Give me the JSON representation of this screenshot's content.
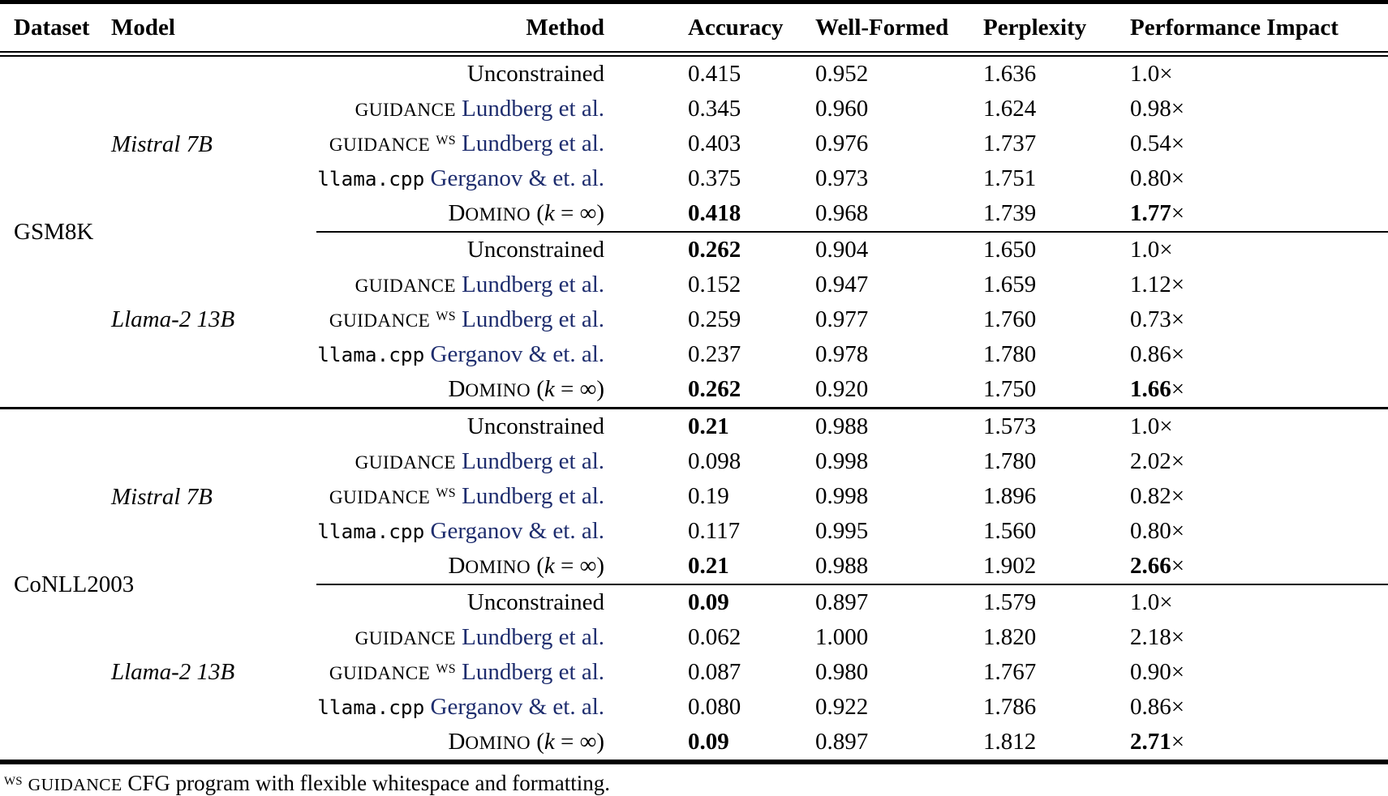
{
  "colors": {
    "citation": "#1e2d6e"
  },
  "impact_suffix": "×",
  "table": {
    "columns": [
      "Dataset",
      "Model",
      "Method",
      "Accuracy",
      "Well-Formed",
      "Perplexity",
      "Performance Impact"
    ],
    "sections": [
      {
        "dataset": "GSM8K",
        "groups": [
          {
            "model": "Mistral 7B",
            "rows": [
              {
                "method_parts": [
                  {
                    "t": "Unconstrained",
                    "s": "plain"
                  }
                ],
                "accuracy": "0.415",
                "accuracy_bold": false,
                "well_formed": "0.952",
                "perplexity": "1.636",
                "impact": "1.0",
                "impact_bold": false
              },
              {
                "method_parts": [
                  {
                    "t": "guidance",
                    "s": "sc"
                  },
                  {
                    "t": " ",
                    "s": "plain"
                  },
                  {
                    "t": "Lundberg et al.",
                    "s": "cite"
                  }
                ],
                "accuracy": "0.345",
                "accuracy_bold": false,
                "well_formed": "0.960",
                "perplexity": "1.624",
                "impact": "0.98",
                "impact_bold": false
              },
              {
                "method_parts": [
                  {
                    "t": "guidance",
                    "s": "sc"
                  },
                  {
                    "t": " ",
                    "s": "plain"
                  },
                  {
                    "t": "WS",
                    "s": "sup"
                  },
                  {
                    "t": " ",
                    "s": "plain"
                  },
                  {
                    "t": "Lundberg et al.",
                    "s": "cite"
                  }
                ],
                "accuracy": "0.403",
                "accuracy_bold": false,
                "well_formed": "0.976",
                "perplexity": "1.737",
                "impact": "0.54",
                "impact_bold": false
              },
              {
                "method_parts": [
                  {
                    "t": "llama.cpp",
                    "s": "mono"
                  },
                  {
                    "t": " ",
                    "s": "plain"
                  },
                  {
                    "t": "Gerganov & et. al.",
                    "s": "cite"
                  }
                ],
                "accuracy": "0.375",
                "accuracy_bold": false,
                "well_formed": "0.973",
                "perplexity": "1.751",
                "impact": "0.80",
                "impact_bold": false
              },
              {
                "method_parts": [
                  {
                    "t": "Domino",
                    "s": "scCap"
                  },
                  {
                    "t": " (",
                    "s": "plain"
                  },
                  {
                    "t": "k",
                    "s": "mathit"
                  },
                  {
                    "t": " = ",
                    "s": "plain"
                  },
                  {
                    "t": "∞)",
                    "s": "plain"
                  }
                ],
                "accuracy": "0.418",
                "accuracy_bold": true,
                "well_formed": "0.968",
                "perplexity": "1.739",
                "impact": "1.77",
                "impact_bold": true
              }
            ]
          },
          {
            "model": "Llama-2 13B",
            "rows": [
              {
                "method_parts": [
                  {
                    "t": "Unconstrained",
                    "s": "plain"
                  }
                ],
                "accuracy": "0.262",
                "accuracy_bold": true,
                "well_formed": "0.904",
                "perplexity": "1.650",
                "impact": "1.0",
                "impact_bold": false
              },
              {
                "method_parts": [
                  {
                    "t": "guidance",
                    "s": "sc"
                  },
                  {
                    "t": " ",
                    "s": "plain"
                  },
                  {
                    "t": "Lundberg et al.",
                    "s": "cite"
                  }
                ],
                "accuracy": "0.152",
                "accuracy_bold": false,
                "well_formed": "0.947",
                "perplexity": "1.659",
                "impact": "1.12",
                "impact_bold": false
              },
              {
                "method_parts": [
                  {
                    "t": "guidance",
                    "s": "sc"
                  },
                  {
                    "t": " ",
                    "s": "plain"
                  },
                  {
                    "t": "WS",
                    "s": "sup"
                  },
                  {
                    "t": " ",
                    "s": "plain"
                  },
                  {
                    "t": "Lundberg et al.",
                    "s": "cite"
                  }
                ],
                "accuracy": "0.259",
                "accuracy_bold": false,
                "well_formed": "0.977",
                "perplexity": "1.760",
                "impact": "0.73",
                "impact_bold": false
              },
              {
                "method_parts": [
                  {
                    "t": "llama.cpp",
                    "s": "mono"
                  },
                  {
                    "t": " ",
                    "s": "plain"
                  },
                  {
                    "t": "Gerganov & et. al.",
                    "s": "cite"
                  }
                ],
                "accuracy": "0.237",
                "accuracy_bold": false,
                "well_formed": "0.978",
                "perplexity": "1.780",
                "impact": "0.86",
                "impact_bold": false
              },
              {
                "method_parts": [
                  {
                    "t": "Domino",
                    "s": "scCap"
                  },
                  {
                    "t": " (",
                    "s": "plain"
                  },
                  {
                    "t": "k",
                    "s": "mathit"
                  },
                  {
                    "t": " = ",
                    "s": "plain"
                  },
                  {
                    "t": "∞)",
                    "s": "plain"
                  }
                ],
                "accuracy": "0.262",
                "accuracy_bold": true,
                "well_formed": "0.920",
                "perplexity": "1.750",
                "impact": "1.66",
                "impact_bold": true
              }
            ]
          }
        ]
      },
      {
        "dataset": "CoNLL2003",
        "groups": [
          {
            "model": "Mistral 7B",
            "rows": [
              {
                "method_parts": [
                  {
                    "t": "Unconstrained",
                    "s": "plain"
                  }
                ],
                "accuracy": "0.21",
                "accuracy_bold": true,
                "well_formed": "0.988",
                "perplexity": "1.573",
                "impact": "1.0",
                "impact_bold": false
              },
              {
                "method_parts": [
                  {
                    "t": "guidance",
                    "s": "sc"
                  },
                  {
                    "t": " ",
                    "s": "plain"
                  },
                  {
                    "t": "Lundberg et al.",
                    "s": "cite"
                  }
                ],
                "accuracy": "0.098",
                "accuracy_bold": false,
                "well_formed": "0.998",
                "perplexity": "1.780",
                "impact": "2.02",
                "impact_bold": false
              },
              {
                "method_parts": [
                  {
                    "t": "guidance",
                    "s": "sc"
                  },
                  {
                    "t": " ",
                    "s": "plain"
                  },
                  {
                    "t": "WS",
                    "s": "sup"
                  },
                  {
                    "t": " ",
                    "s": "plain"
                  },
                  {
                    "t": "Lundberg et al.",
                    "s": "cite"
                  }
                ],
                "accuracy": "0.19",
                "accuracy_bold": false,
                "well_formed": "0.998",
                "perplexity": "1.896",
                "impact": "0.82",
                "impact_bold": false
              },
              {
                "method_parts": [
                  {
                    "t": "llama.cpp",
                    "s": "mono"
                  },
                  {
                    "t": " ",
                    "s": "plain"
                  },
                  {
                    "t": "Gerganov & et. al.",
                    "s": "cite"
                  }
                ],
                "accuracy": "0.117",
                "accuracy_bold": false,
                "well_formed": "0.995",
                "perplexity": "1.560",
                "impact": "0.80",
                "impact_bold": false
              },
              {
                "method_parts": [
                  {
                    "t": "Domino",
                    "s": "scCap"
                  },
                  {
                    "t": " (",
                    "s": "plain"
                  },
                  {
                    "t": "k",
                    "s": "mathit"
                  },
                  {
                    "t": " = ",
                    "s": "plain"
                  },
                  {
                    "t": "∞)",
                    "s": "plain"
                  }
                ],
                "accuracy": "0.21",
                "accuracy_bold": true,
                "well_formed": "0.988",
                "perplexity": "1.902",
                "impact": "2.66",
                "impact_bold": true
              }
            ]
          },
          {
            "model": "Llama-2 13B",
            "rows": [
              {
                "method_parts": [
                  {
                    "t": "Unconstrained",
                    "s": "plain"
                  }
                ],
                "accuracy": "0.09",
                "accuracy_bold": true,
                "well_formed": "0.897",
                "perplexity": "1.579",
                "impact": "1.0",
                "impact_bold": false
              },
              {
                "method_parts": [
                  {
                    "t": "guidance",
                    "s": "sc"
                  },
                  {
                    "t": " ",
                    "s": "plain"
                  },
                  {
                    "t": "Lundberg et al.",
                    "s": "cite"
                  }
                ],
                "accuracy": "0.062",
                "accuracy_bold": false,
                "well_formed": "1.000",
                "perplexity": "1.820",
                "impact": "2.18",
                "impact_bold": false
              },
              {
                "method_parts": [
                  {
                    "t": "guidance",
                    "s": "sc"
                  },
                  {
                    "t": " ",
                    "s": "plain"
                  },
                  {
                    "t": "WS",
                    "s": "sup"
                  },
                  {
                    "t": " ",
                    "s": "plain"
                  },
                  {
                    "t": "Lundberg et al.",
                    "s": "cite"
                  }
                ],
                "accuracy": "0.087",
                "accuracy_bold": false,
                "well_formed": "0.980",
                "perplexity": "1.767",
                "impact": "0.90",
                "impact_bold": false
              },
              {
                "method_parts": [
                  {
                    "t": "llama.cpp",
                    "s": "mono"
                  },
                  {
                    "t": " ",
                    "s": "plain"
                  },
                  {
                    "t": "Gerganov & et. al.",
                    "s": "cite"
                  }
                ],
                "accuracy": "0.080",
                "accuracy_bold": false,
                "well_formed": "0.922",
                "perplexity": "1.786",
                "impact": "0.86",
                "impact_bold": false
              },
              {
                "method_parts": [
                  {
                    "t": "Domino",
                    "s": "scCap"
                  },
                  {
                    "t": " (",
                    "s": "plain"
                  },
                  {
                    "t": "k",
                    "s": "mathit"
                  },
                  {
                    "t": " = ",
                    "s": "plain"
                  },
                  {
                    "t": "∞)",
                    "s": "plain"
                  }
                ],
                "accuracy": "0.09",
                "accuracy_bold": true,
                "well_formed": "0.897",
                "perplexity": "1.812",
                "impact": "2.71",
                "impact_bold": true
              }
            ]
          }
        ]
      }
    ]
  },
  "footnote_parts": [
    {
      "t": "WS",
      "s": "sup"
    },
    {
      "t": " ",
      "s": "plain"
    },
    {
      "t": "guidance",
      "s": "sc"
    },
    {
      "t": " CFG program with flexible whitespace and formatting.",
      "s": "plain"
    }
  ]
}
